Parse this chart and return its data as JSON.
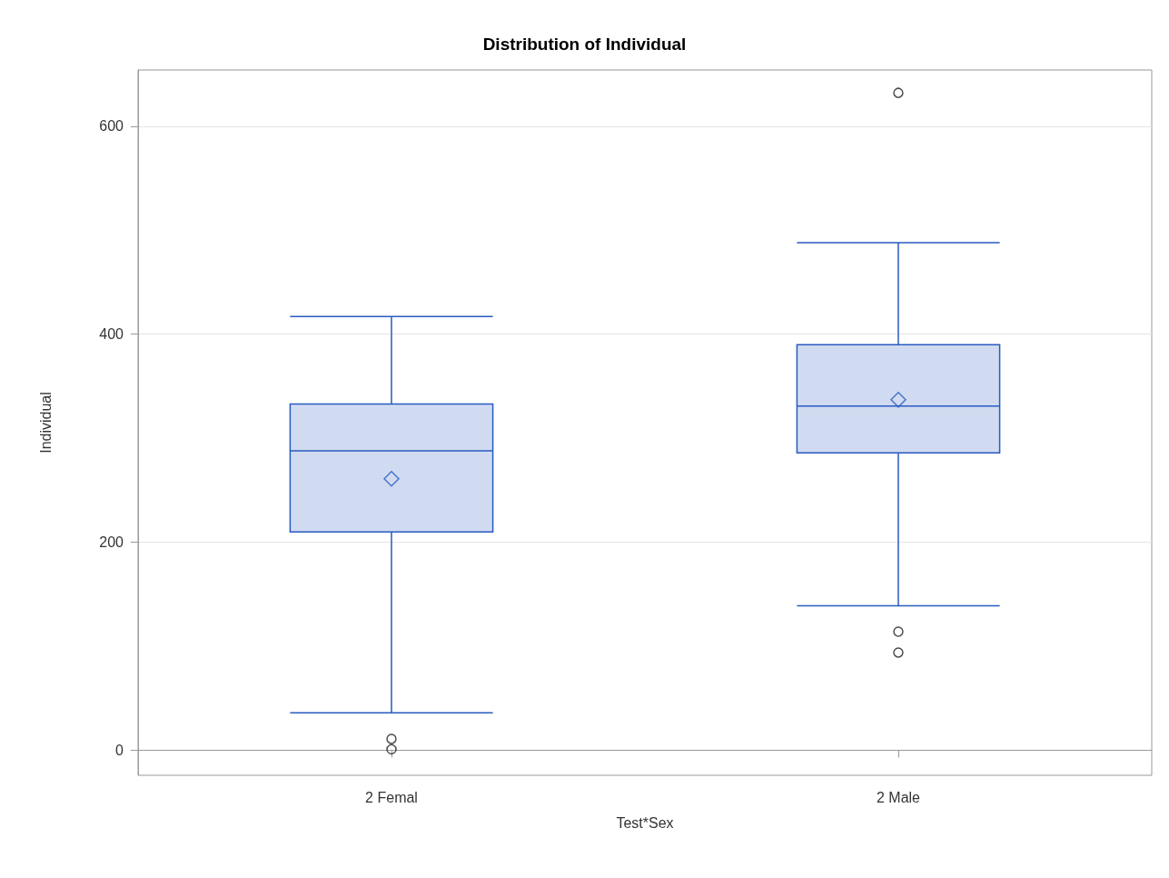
{
  "chart_data": {
    "type": "box",
    "title": "Distribution of Individual",
    "xlabel": "Test*Sex",
    "ylabel": "Individual",
    "categories": [
      "2 Femal",
      "2 Male"
    ],
    "series": [
      {
        "color": "#2a5bbf",
        "boxes": [
          {
            "low": 36,
            "q1": 210,
            "median": 288,
            "q3": 333,
            "high": 417,
            "mean": 261,
            "outliers": [
              11,
              1
            ]
          },
          {
            "low": 139,
            "q1": 286,
            "median": 331,
            "q3": 390,
            "high": 488,
            "mean": 337,
            "outliers": [
              632,
              114,
              94
            ]
          }
        ]
      }
    ],
    "ylim": [
      -24,
      654
    ],
    "yticks": [
      0,
      200,
      400,
      600
    ],
    "grid": "y"
  }
}
